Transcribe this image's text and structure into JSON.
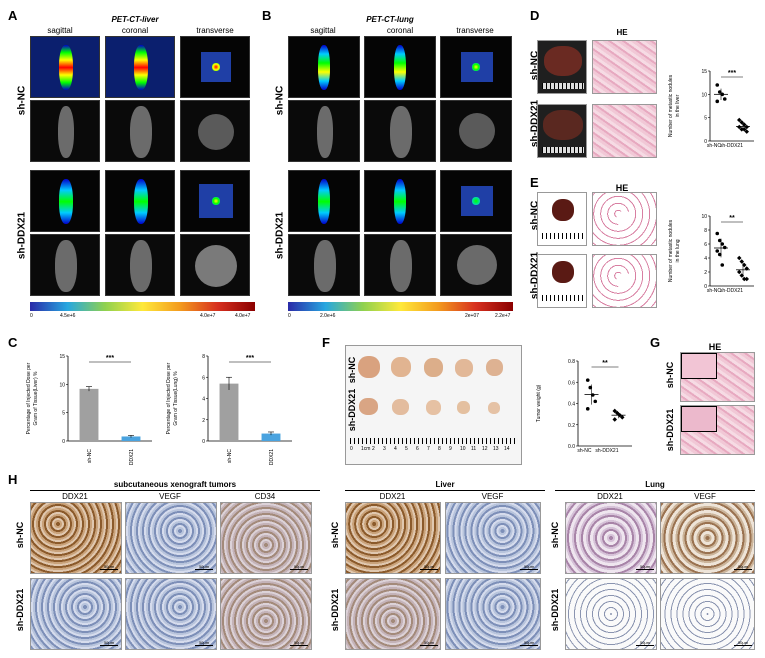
{
  "panels": {
    "A": {
      "letter": "A",
      "title": "PET-CT-liver",
      "views": [
        "sagittal",
        "coronal",
        "transverse"
      ],
      "rows": [
        "sh-NC",
        "sh-DDX21"
      ],
      "colorbar_ticks": [
        "0",
        "4.5e+6",
        "4.0e+7",
        "4.0e+7"
      ]
    },
    "B": {
      "letter": "B",
      "title": "PET-CT-lung",
      "views": [
        "sagittal",
        "coronal",
        "transverse"
      ],
      "rows": [
        "sh-NC",
        "sh-DDX21"
      ],
      "colorbar_ticks": [
        "0",
        "2.0e+6",
        "2e+07",
        "2.2e+7"
      ]
    },
    "C": {
      "letter": "C"
    },
    "D": {
      "letter": "D",
      "he_label": "HE",
      "rows": [
        "sh-NC",
        "sh-DDX21"
      ]
    },
    "E": {
      "letter": "E",
      "he_label": "HE",
      "rows": [
        "sh-NC",
        "sh-DDX21"
      ]
    },
    "F": {
      "letter": "F",
      "rows": [
        "sh-NC",
        "sh-DDX21"
      ],
      "ruler_labels": [
        "0",
        "1cm",
        "2",
        "3",
        "4",
        "5",
        "6",
        "7",
        "8",
        "9",
        "10",
        "11",
        "12",
        "13",
        "14"
      ]
    },
    "G": {
      "letter": "G",
      "he_label": "HE",
      "rows": [
        "sh-NC",
        "sh-DDX21"
      ]
    },
    "H": {
      "letter": "H",
      "groups": [
        {
          "title": "subcutaneous xenograft tumors",
          "markers": [
            "DDX21",
            "VEGF",
            "CD34"
          ]
        },
        {
          "title": "Liver",
          "markers": [
            "DDX21",
            "VEGF"
          ]
        },
        {
          "title": "Lung",
          "markers": [
            "DDX21",
            "VEGF"
          ]
        }
      ],
      "rows": [
        "sh-NC",
        "sh-DDX21"
      ],
      "scale": "50μm"
    }
  },
  "chart_data": [
    {
      "id": "C1",
      "type": "bar",
      "categories": [
        "sh-NC",
        "sh-DDX21"
      ],
      "values": [
        9.2,
        0.8
      ],
      "errors": [
        0.4,
        0.2
      ],
      "colors": [
        "#a0a0a0",
        "#4aa3df"
      ],
      "ylabel": "Percentage of Injected Dose per Gram of Tissue(Liver) %",
      "ylim": [
        0,
        15
      ],
      "yticks": [
        "0",
        "5",
        "10",
        "15"
      ],
      "significance": "***"
    },
    {
      "id": "C2",
      "type": "bar",
      "categories": [
        "sh-NC",
        "sh-DDX21"
      ],
      "values": [
        5.4,
        0.7
      ],
      "errors": [
        0.6,
        0.15
      ],
      "colors": [
        "#a0a0a0",
        "#4aa3df"
      ],
      "ylabel": "Percentage of Injected Dose per Gram of Tissue(Lung) %",
      "ylim": [
        0,
        8
      ],
      "yticks": [
        "0",
        "2",
        "4",
        "6",
        "8"
      ],
      "significance": "***"
    },
    {
      "id": "D",
      "type": "scatter",
      "categories": [
        "sh-NC",
        "sh-DDX21"
      ],
      "points": [
        [
          12,
          10.5,
          10,
          9,
          8.5
        ],
        [
          4.5,
          4,
          3.5,
          3,
          3,
          2.5,
          2.5,
          2
        ]
      ],
      "ylabel": "Number of metastic nodules in the liver",
      "ylim": [
        0,
        15
      ],
      "yticks": [
        "0",
        "5",
        "10",
        "15"
      ],
      "significance": "***"
    },
    {
      "id": "E",
      "type": "scatter",
      "categories": [
        "sh-NC",
        "sh-DDX21"
      ],
      "points": [
        [
          7.5,
          6.5,
          6,
          5.5,
          5,
          4.5,
          3
        ],
        [
          4,
          3.5,
          3,
          2.5,
          2,
          1.5,
          1,
          1
        ]
      ],
      "ylabel": "Number of metastic nodules in the lung",
      "ylim": [
        0,
        10
      ],
      "yticks": [
        "0",
        "2",
        "4",
        "6",
        "8",
        "10"
      ],
      "significance": "**"
    },
    {
      "id": "F",
      "type": "scatter",
      "categories": [
        "sh-NC",
        "sh-DDX21"
      ],
      "points": [
        [
          0.62,
          0.55,
          0.48,
          0.42,
          0.35
        ],
        [
          0.33,
          0.31,
          0.29,
          0.27,
          0.25
        ]
      ],
      "ylabel": "Tumor weight (g)",
      "ylim": [
        0,
        0.8
      ],
      "yticks": [
        "0.0",
        "0.2",
        "0.4",
        "0.6",
        "0.8"
      ],
      "significance": "**"
    }
  ]
}
